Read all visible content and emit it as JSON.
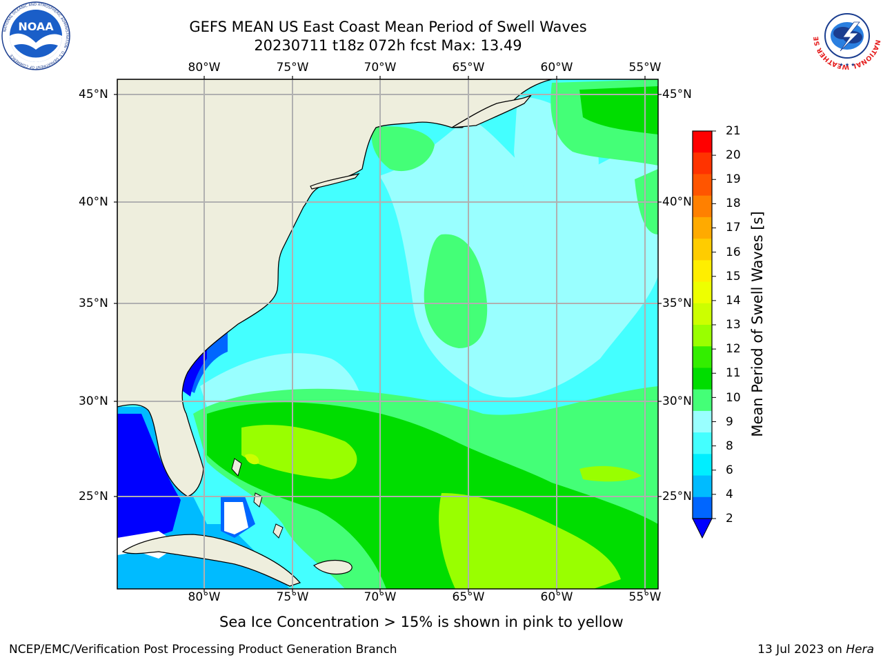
{
  "title": {
    "line1": "GEFS MEAN US East Coast Mean Period of Swell Waves",
    "line2": "20230711 t18z 072h fcst   Max: 13.49"
  },
  "logos": {
    "left": {
      "icon": "noaa-logo-icon",
      "text": "NOAA",
      "ring_text": "NATIONAL OCEANIC AND ATMOSPHERIC ADMINISTRATION · U.S. DEPARTMENT OF COMMERCE"
    },
    "right": {
      "icon": "nws-logo-icon",
      "ring_text": "NATIONAL WEATHER SERVICE"
    }
  },
  "map": {
    "longitude_labels": [
      "80°W",
      "75°W",
      "70°W",
      "65°W",
      "60°W",
      "55°W"
    ],
    "latitude_labels": [
      "45°N",
      "40°N",
      "35°N",
      "30°N",
      "25°N"
    ],
    "gridlines": true,
    "colors": {
      "land": "#eeeedd",
      "grid": "#b0b0b0",
      "coast": "#000000"
    }
  },
  "colorbar": {
    "label": "Mean Period of Swell Waves [s]",
    "ticks": [
      "21",
      "20",
      "19",
      "18",
      "17",
      "16",
      "15",
      "14",
      "13",
      "12",
      "11",
      "10",
      "9",
      "8",
      "6",
      "4",
      "2"
    ],
    "colors_top_to_bottom": [
      "#ff0000",
      "#ff3300",
      "#ff5500",
      "#ff8000",
      "#ffaa00",
      "#ffcc00",
      "#ffee00",
      "#eeff00",
      "#ccff00",
      "#99ff00",
      "#33ee00",
      "#00dd00",
      "#44ff77",
      "#99ffff",
      "#44ffff",
      "#00eeff",
      "#00bbff",
      "#0066ff"
    ],
    "under_color": "#0000ff"
  },
  "subtitle": "Sea Ice Concentration > 15% is shown in pink to yellow",
  "footer": {
    "left": "NCEP/EMC/Verification Post Processing Product Generation Branch",
    "right_date": "13 Jul 2023 on ",
    "right_machine": "Hera"
  }
}
